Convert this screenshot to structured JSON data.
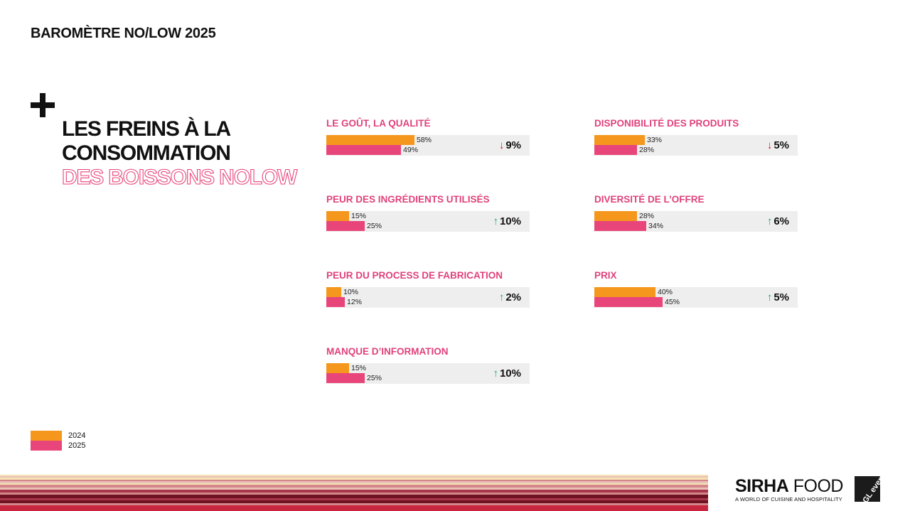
{
  "header": {
    "title": "BAROMÈTRE NO/LOW 2025"
  },
  "section": {
    "title_line1": "LES FREINS À LA",
    "title_line2": "CONSOMMATION",
    "title_line3": "DES BOISSONS NOLOW"
  },
  "colors": {
    "accent_2024": "#f5971d",
    "accent_2025": "#e8457a",
    "panel_title": "#e0417a",
    "arrow_up": "#1aa68a",
    "arrow_down": "#d41e2a",
    "track": "#eeeeee"
  },
  "chart_data": {
    "type": "bar",
    "series": [
      {
        "name": "2024"
      },
      {
        "name": "2025"
      }
    ],
    "panels": [
      {
        "title": "LE GOÛT, LA QUALITÉ",
        "value_2024": 58,
        "value_2025": 49,
        "label_2024": "58%",
        "label_2025": "49%",
        "direction": "down",
        "change": "9%"
      },
      {
        "title": "PEUR DES INGRÉDIENTS UTILISÉS",
        "value_2024": 15,
        "value_2025": 25,
        "label_2024": "15%",
        "label_2025": "25%",
        "direction": "up",
        "change": "10%"
      },
      {
        "title": "PEUR DU PROCESS DE FABRICATION",
        "value_2024": 10,
        "value_2025": 12,
        "label_2024": "10%",
        "label_2025": "12%",
        "direction": "up",
        "change": "2%"
      },
      {
        "title": "MANQUE D’INFORMATION",
        "value_2024": 15,
        "value_2025": 25,
        "label_2024": "15%",
        "label_2025": "25%",
        "direction": "up",
        "change": "10%"
      },
      {
        "title": "DISPONIBILITÉ DES PRODUITS",
        "value_2024": 33,
        "value_2025": 28,
        "label_2024": "33%",
        "label_2025": "28%",
        "direction": "down",
        "change": "5%"
      },
      {
        "title": "DIVERSITÉ DE L’OFFRE",
        "value_2024": 28,
        "value_2025": 34,
        "label_2024": "28%",
        "label_2025": "34%",
        "direction": "up",
        "change": "6%"
      },
      {
        "title": "PRIX",
        "value_2024": 40,
        "value_2025": 45,
        "label_2024": "40%",
        "label_2025": "45%",
        "direction": "up",
        "change": "5%"
      }
    ],
    "scale_max": 100,
    "legend_placement": "bottom-left"
  },
  "legend": {
    "label_2024": "2024",
    "label_2025": "2025"
  },
  "brand": {
    "name_bold": "SIRHA",
    "name_light": "FOOD",
    "tagline": "A WORLD OF CUISINE AND HOSPITALITY",
    "partner": "GL events"
  },
  "footer_stripe_colors": [
    "#f6e2b5",
    "#e9c0b5",
    "#d4878a",
    "#a9374b",
    "#6f1322",
    "#c8253f"
  ]
}
